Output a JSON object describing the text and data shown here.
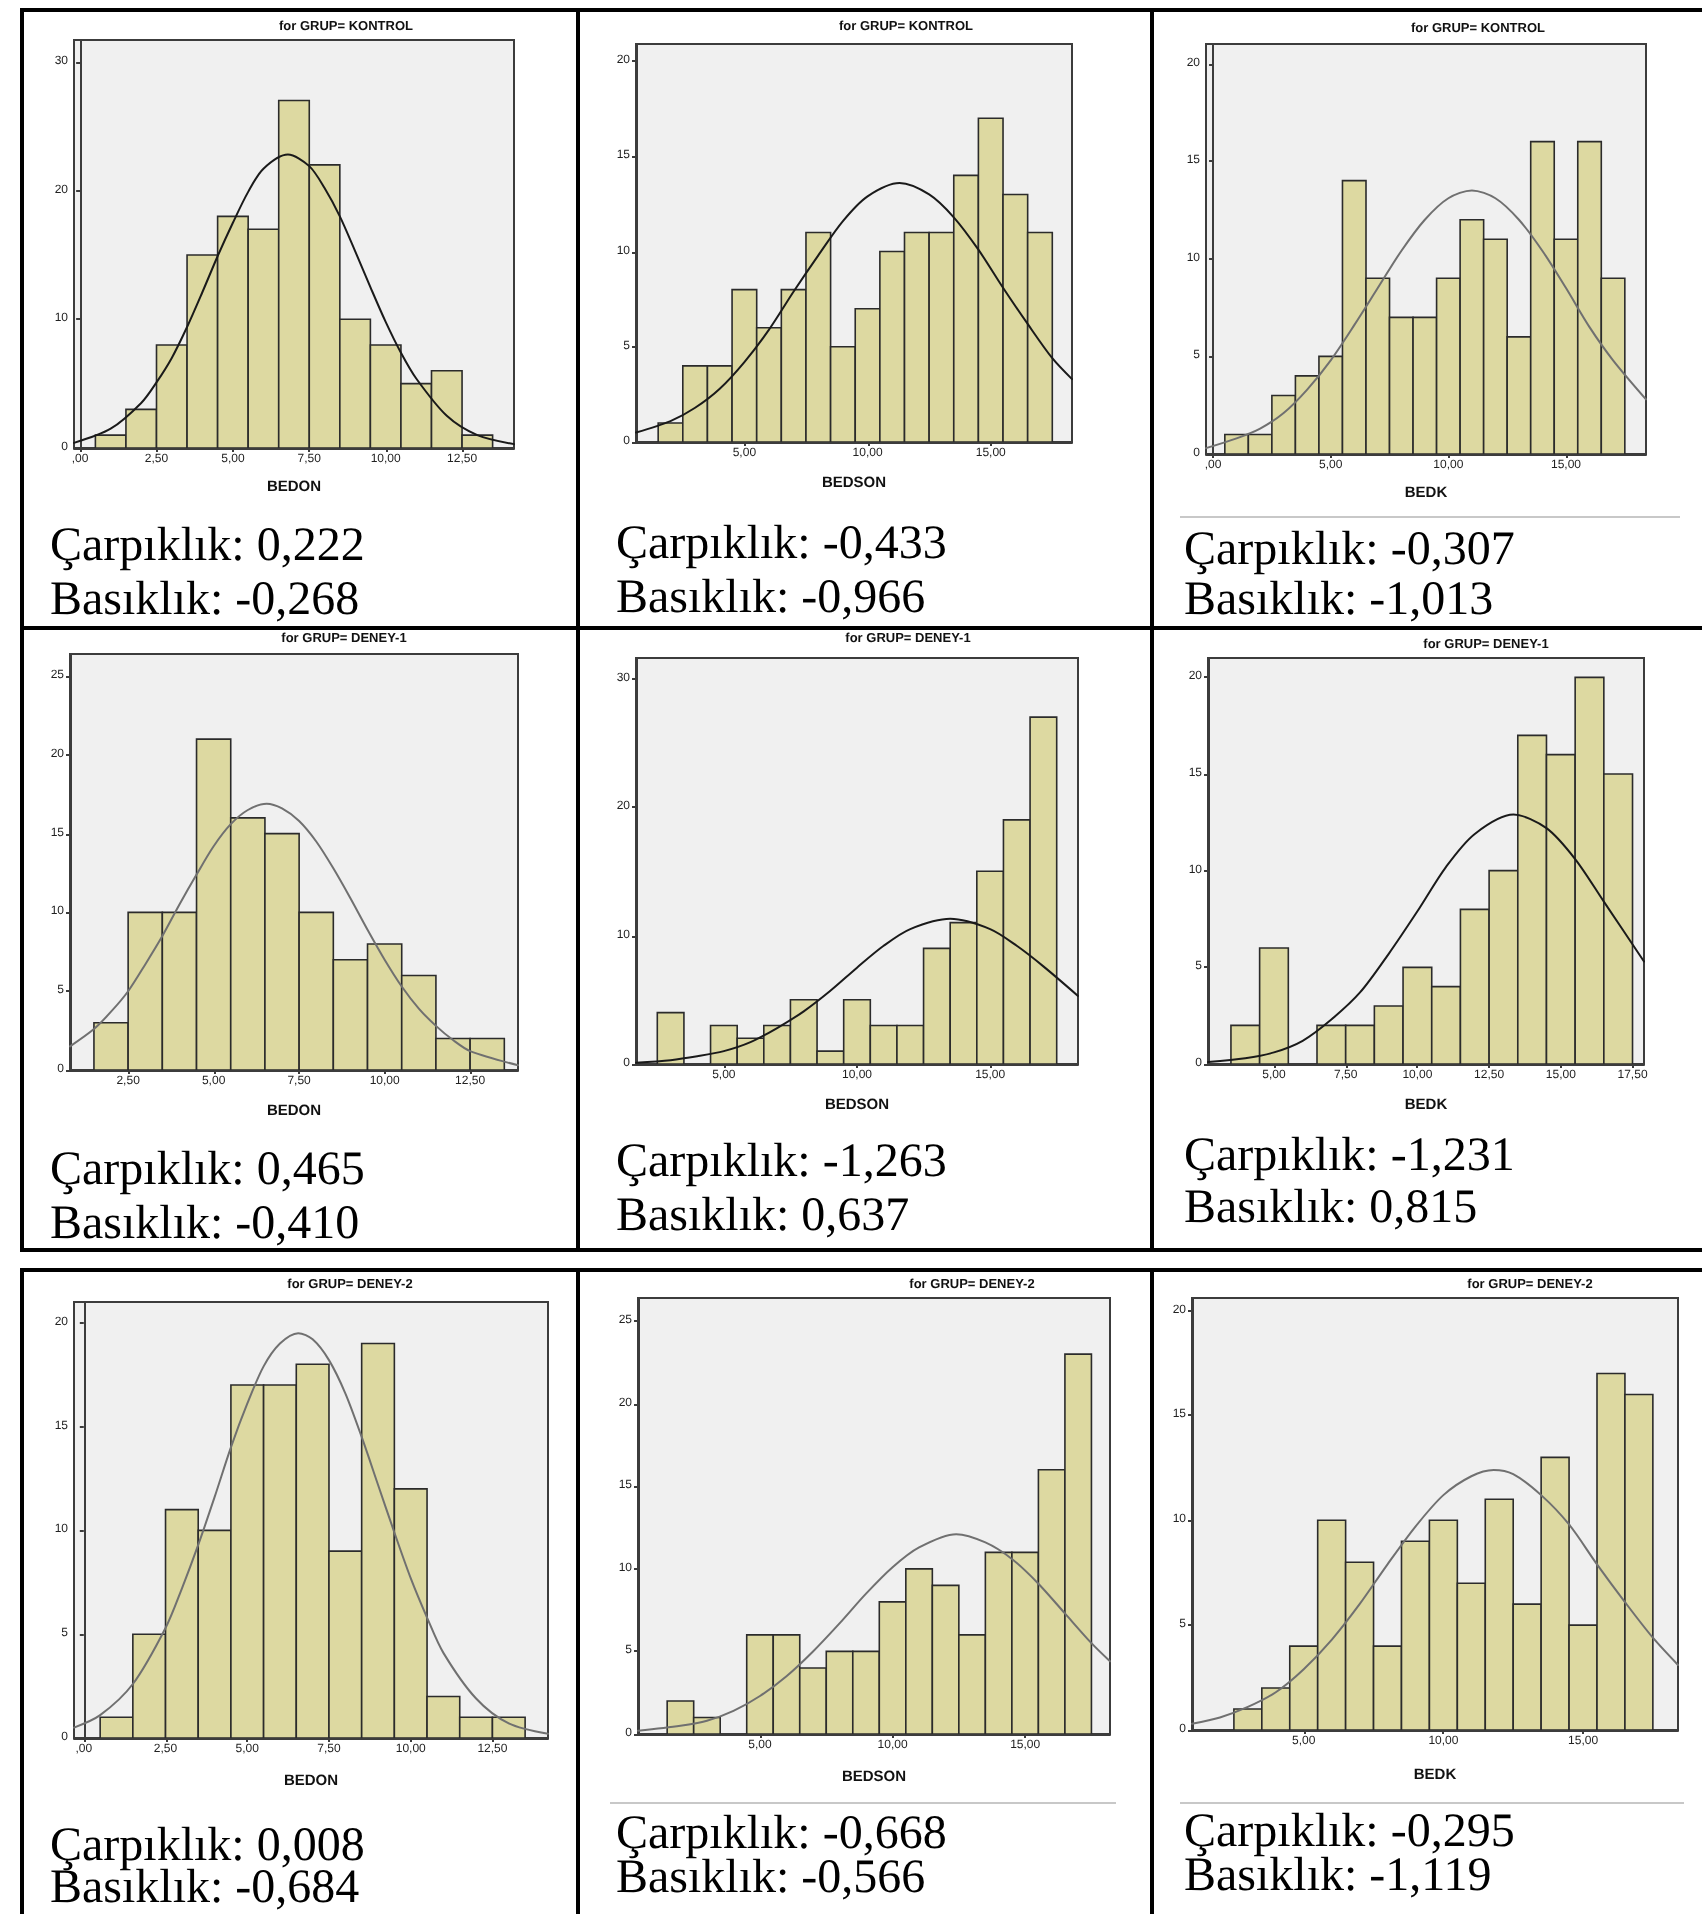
{
  "chart_data": [
    {
      "type": "histogram",
      "title": "for GRUP= KONTROL",
      "xlabel": "BEDON",
      "bins": [
        0.5,
        1.5,
        2.5,
        3.5,
        4.5,
        5.5,
        6.5,
        7.5,
        8.5,
        9.5,
        10.5,
        11.5,
        12.5,
        13.5
      ],
      "series": [
        {
          "values": [
            1,
            3,
            8,
            15,
            18,
            17,
            27,
            22,
            10,
            8,
            5,
            6,
            1
          ],
          "color": "#ddd9a1"
        },
        {
          "type": "line",
          "x": [
            -0.2,
            1,
            2,
            2.5,
            3,
            3.5,
            4,
            4.5,
            5,
            5.5,
            6,
            6.8,
            7.5,
            8,
            8.5,
            9,
            9.5,
            10,
            10.5,
            11,
            12,
            13,
            14.2
          ],
          "values": [
            0.4,
            1.5,
            3.5,
            5.1,
            7.0,
            9.4,
            12.1,
            14.9,
            17.5,
            19.9,
            21.7,
            22.8,
            21.9,
            20.2,
            18.0,
            15.3,
            12.5,
            9.8,
            7.4,
            5.4,
            2.5,
            1.0,
            0.3
          ],
          "color": "#1a1a1a"
        }
      ],
      "xlim": [
        -0.2,
        14.2
      ],
      "xticks": [
        {
          "value": 0,
          "label": ",00"
        },
        {
          "value": 2.5,
          "label": "2,50"
        },
        {
          "value": 5,
          "label": "5,00"
        },
        {
          "value": 7.5,
          "label": "7,50"
        },
        {
          "value": 10,
          "label": "10,00"
        },
        {
          "value": 12.5,
          "label": "12,50"
        }
      ],
      "ylim": [
        0,
        31.7
      ],
      "yticks": [
        0,
        10,
        20,
        30
      ],
      "annotations": [
        "Çarpıklık: 0,222",
        "Basıklık: -0,268"
      ]
    },
    {
      "type": "histogram",
      "title": "for GRUP= KONTROL",
      "xlabel": "BEDSON",
      "bins": [
        1.5,
        2.5,
        3.5,
        4.5,
        5.5,
        6.5,
        7.5,
        8.5,
        9.5,
        10.5,
        11.5,
        12.5,
        13.5,
        14.5,
        15.5,
        16.5,
        17.5
      ],
      "series": [
        {
          "values": [
            1,
            4,
            4,
            8,
            6,
            8,
            11,
            5,
            7,
            10,
            11,
            11,
            14,
            17,
            13,
            11
          ],
          "color": "#ddd9a1"
        },
        {
          "type": "line",
          "x": [
            0.6,
            2,
            3,
            4,
            5,
            6,
            7,
            8,
            9,
            10,
            11.3,
            12.5,
            13.5,
            14.5,
            15.5,
            16.5,
            17.5,
            18.3
          ],
          "values": [
            0.5,
            1.1,
            1.8,
            2.8,
            4.2,
            5.9,
            7.9,
            9.8,
            11.6,
            12.9,
            13.6,
            13.0,
            11.8,
            10.1,
            8.1,
            6.2,
            4.4,
            3.3
          ],
          "color": "#1a1a1a"
        }
      ],
      "xlim": [
        0.6,
        18.3
      ],
      "xticks": [
        {
          "value": 5,
          "label": "5,00"
        },
        {
          "value": 10,
          "label": "10,00"
        },
        {
          "value": 15,
          "label": "15,00"
        }
      ],
      "ylim": [
        0,
        20.9
      ],
      "yticks": [
        0,
        5,
        10,
        15,
        20
      ],
      "annotations": [
        "Çarpıklık: -0,433",
        "Basıklık: -0,966"
      ]
    },
    {
      "type": "histogram",
      "title": "for GRUP= KONTROL",
      "xlabel": "BEDK",
      "bins": [
        0.5,
        1.5,
        2.5,
        3.5,
        4.5,
        5.5,
        6.5,
        7.5,
        8.5,
        9.5,
        10.5,
        11.5,
        12.5,
        13.5,
        14.5,
        15.5,
        16.5,
        17.5
      ],
      "series": [
        {
          "values": [
            1,
            1,
            3,
            4,
            5,
            14,
            9,
            7,
            7,
            9,
            12,
            11,
            6,
            16,
            11,
            16,
            9
          ],
          "color": "#ddd9a1"
        },
        {
          "type": "line",
          "x": [
            -0.3,
            1,
            2,
            3,
            4,
            5,
            6,
            7,
            8,
            9,
            10,
            11,
            12,
            13,
            14,
            15,
            16,
            17,
            18.4
          ],
          "values": [
            0.3,
            0.8,
            1.3,
            2.1,
            3.3,
            4.8,
            6.6,
            8.5,
            10.4,
            12.0,
            13.1,
            13.5,
            13.1,
            12.0,
            10.4,
            8.5,
            6.5,
            4.8,
            2.8
          ],
          "color": "#707070"
        }
      ],
      "xlim": [
        -0.3,
        18.4
      ],
      "xticks": [
        {
          "value": 0,
          "label": ",00"
        },
        {
          "value": 5,
          "label": "5,00"
        },
        {
          "value": 10,
          "label": "10,00"
        },
        {
          "value": 15,
          "label": "15,00"
        }
      ],
      "ylim": [
        0,
        21
      ],
      "yticks": [
        0,
        5,
        10,
        15,
        20
      ],
      "annotations": [
        "Çarpıklık: -0,307",
        "Basıklık: -1,013"
      ]
    },
    {
      "type": "histogram",
      "title": "for GRUP= DENEY-1",
      "xlabel": "BEDON",
      "bins": [
        1.5,
        2.5,
        3.5,
        4.5,
        5.5,
        6.5,
        7.5,
        8.5,
        9.5,
        10.5,
        11.5,
        12.5,
        13.5
      ],
      "series": [
        {
          "values": [
            3,
            10,
            10,
            21,
            16,
            15,
            10,
            7,
            8,
            6,
            2,
            2
          ],
          "color": "#ddd9a1"
        },
        {
          "type": "line",
          "x": [
            0.8,
            1.5,
            2,
            2.5,
            3,
            3.5,
            4,
            4.5,
            5,
            5.5,
            6,
            6.55,
            7,
            7.5,
            8,
            8.5,
            9,
            9.5,
            10,
            10.5,
            11,
            11.5,
            12,
            12.5,
            13.9
          ],
          "values": [
            1.5,
            2.6,
            3.7,
            5.0,
            6.7,
            8.5,
            10.5,
            12.4,
            14.2,
            15.6,
            16.5,
            16.9,
            16.6,
            15.8,
            14.5,
            12.8,
            10.9,
            8.9,
            7.0,
            5.3,
            3.9,
            2.8,
            1.9,
            1.2,
            0.3
          ],
          "color": "#707070"
        }
      ],
      "xlim": [
        0.8,
        13.9
      ],
      "xticks": [
        {
          "value": 2.5,
          "label": "2,50"
        },
        {
          "value": 5,
          "label": "5,00"
        },
        {
          "value": 7.5,
          "label": "7,50"
        },
        {
          "value": 10,
          "label": "10,00"
        },
        {
          "value": 12.5,
          "label": "12,50"
        }
      ],
      "ylim": [
        0,
        26.4
      ],
      "yticks": [
        0,
        5,
        10,
        15,
        20,
        25
      ],
      "annotations": [
        "Çarpıklık: 0,465",
        "Basıklık: -0,410"
      ]
    },
    {
      "type": "histogram",
      "title": "for GRUP= DENEY-1",
      "xlabel": "BEDSON",
      "bins": [
        2.5,
        3.5,
        4.5,
        5.5,
        6.5,
        7.5,
        8.5,
        9.5,
        10.5,
        11.5,
        12.5,
        13.5,
        14.5,
        15.5,
        16.5,
        17.5
      ],
      "series": [
        {
          "values": [
            4,
            0,
            3,
            2,
            3,
            5,
            1,
            5,
            3,
            3,
            9,
            11,
            15,
            19,
            27
          ],
          "color": "#ddd9a1"
        },
        {
          "type": "line",
          "x": [
            1.7,
            3,
            4,
            5,
            6,
            7,
            8,
            9,
            10,
            11,
            12,
            13.5,
            15,
            16,
            17,
            18.3
          ],
          "values": [
            0.1,
            0.3,
            0.6,
            1.0,
            1.7,
            2.8,
            4.1,
            5.7,
            7.5,
            9.2,
            10.5,
            11.3,
            10.5,
            9.2,
            7.6,
            5.3
          ],
          "color": "#1a1a1a"
        }
      ],
      "xlim": [
        1.7,
        18.3
      ],
      "xticks": [
        {
          "value": 5,
          "label": "5,00"
        },
        {
          "value": 10,
          "label": "10,00"
        },
        {
          "value": 15,
          "label": "15,00"
        }
      ],
      "ylim": [
        0,
        31.6
      ],
      "yticks": [
        0,
        10,
        20,
        30
      ],
      "annotations": [
        "Çarpıklık: -1,263",
        "Basıklık: 0,637"
      ]
    },
    {
      "type": "histogram",
      "title": "for GRUP= DENEY-1",
      "xlabel": "BEDK",
      "bins": [
        3.5,
        4.5,
        5.5,
        6.5,
        7.5,
        8.5,
        9.5,
        10.5,
        11.5,
        12.5,
        13.5,
        14.5,
        15.5,
        16.5,
        17.5
      ],
      "series": [
        {
          "values": [
            2,
            6,
            0,
            2,
            2,
            3,
            5,
            4,
            8,
            10,
            17,
            16,
            20,
            15
          ],
          "color": "#ddd9a1"
        },
        {
          "type": "line",
          "x": [
            2.7,
            4,
            5,
            6,
            7,
            8,
            9,
            10,
            11,
            12,
            13.35,
            14.5,
            15.5,
            16.5,
            17.9
          ],
          "values": [
            0.1,
            0.3,
            0.6,
            1.2,
            2.3,
            3.7,
            5.7,
            7.9,
            10.2,
            11.9,
            12.9,
            12.2,
            10.6,
            8.4,
            5.3
          ],
          "color": "#1a1a1a"
        }
      ],
      "xlim": [
        2.7,
        17.9
      ],
      "xticks": [
        {
          "value": 5,
          "label": "5,00"
        },
        {
          "value": 7.5,
          "label": "7,50"
        },
        {
          "value": 10,
          "label": "10,00"
        },
        {
          "value": 12.5,
          "label": "12,50"
        },
        {
          "value": 15,
          "label": "15,00"
        },
        {
          "value": 17.5,
          "label": "17,50"
        }
      ],
      "ylim": [
        0,
        21
      ],
      "yticks": [
        0,
        5,
        10,
        15,
        20
      ],
      "annotations": [
        "Çarpıklık: -1,231",
        "Basıklık: 0,815"
      ]
    },
    {
      "type": "histogram",
      "title": "for GRUP= DENEY-2",
      "xlabel": "BEDON",
      "bins": [
        0.5,
        1.5,
        2.5,
        3.5,
        4.5,
        5.5,
        6.5,
        7.5,
        8.5,
        9.5,
        10.5,
        11.5,
        12.5,
        13.5
      ],
      "series": [
        {
          "values": [
            1,
            5,
            11,
            10,
            17,
            17,
            18,
            9,
            19,
            12,
            2,
            1,
            1
          ],
          "color": "#ddd9a1"
        },
        {
          "type": "line",
          "x": [
            -0.3,
            0.5,
            1.5,
            2.5,
            3,
            3.5,
            4,
            4.5,
            5,
            5.5,
            6,
            6.56,
            7,
            7.5,
            8,
            8.5,
            9,
            9.5,
            10,
            10.5,
            11,
            12,
            13,
            14.2
          ],
          "values": [
            0.5,
            1.1,
            2.6,
            5.3,
            7.2,
            9.3,
            11.6,
            14.0,
            16.1,
            17.9,
            19.0,
            19.5,
            19.2,
            18.2,
            16.6,
            14.5,
            12.2,
            9.9,
            7.7,
            5.8,
            4.1,
            1.9,
            0.7,
            0.2
          ],
          "color": "#707070"
        }
      ],
      "xlim": [
        -0.3,
        14.2
      ],
      "xticks": [
        {
          "value": 0,
          "label": ",00"
        },
        {
          "value": 2.5,
          "label": "2,50"
        },
        {
          "value": 5,
          "label": "5,00"
        },
        {
          "value": 7.5,
          "label": "7,50"
        },
        {
          "value": 10,
          "label": "10,00"
        },
        {
          "value": 12.5,
          "label": "12,50"
        }
      ],
      "ylim": [
        0,
        21
      ],
      "yticks": [
        0,
        5,
        10,
        15,
        20
      ],
      "annotations": [
        "Çarpıklık: 0,008",
        "Basıklık: -0,684"
      ]
    },
    {
      "type": "histogram",
      "title": "for GRUP= DENEY-2",
      "xlabel": "BEDSON",
      "bins": [
        1.5,
        2.5,
        3.5,
        4.5,
        5.5,
        6.5,
        7.5,
        8.5,
        9.5,
        10.5,
        11.5,
        12.5,
        13.5,
        14.5,
        15.5,
        16.5,
        17.5
      ],
      "series": [
        {
          "values": [
            2,
            1,
            0,
            6,
            6,
            4,
            5,
            5,
            8,
            10,
            9,
            6,
            11,
            11,
            16,
            23
          ],
          "color": "#ddd9a1"
        },
        {
          "type": "line",
          "x": [
            0.4,
            2,
            3,
            4,
            5,
            6,
            7,
            8,
            9,
            10,
            11,
            12.4,
            13.5,
            14.5,
            15.5,
            16.5,
            17.5,
            18.2
          ],
          "values": [
            0.2,
            0.5,
            0.8,
            1.4,
            2.3,
            3.5,
            5.0,
            6.7,
            8.5,
            10.1,
            11.3,
            12.1,
            11.6,
            10.6,
            9.1,
            7.3,
            5.5,
            4.4
          ],
          "color": "#707070"
        }
      ],
      "xlim": [
        0.4,
        18.2
      ],
      "xticks": [
        {
          "value": 5,
          "label": "5,00"
        },
        {
          "value": 10,
          "label": "10,00"
        },
        {
          "value": 15,
          "label": "15,00"
        }
      ],
      "ylim": [
        0,
        26.4
      ],
      "yticks": [
        0,
        5,
        10,
        15,
        20,
        25
      ],
      "annotations": [
        "Çarpıklık: -0,668",
        "Basıklık: -0,566"
      ]
    },
    {
      "type": "histogram",
      "title": "for GRUP= DENEY-2",
      "xlabel": "BEDK",
      "bins": [
        2.5,
        3.5,
        4.5,
        5.5,
        6.5,
        7.5,
        8.5,
        9.5,
        10.5,
        11.5,
        12.5,
        13.5,
        14.5,
        15.5,
        16.5,
        17.5
      ],
      "series": [
        {
          "values": [
            1,
            2,
            4,
            10,
            8,
            4,
            9,
            10,
            7,
            11,
            6,
            13,
            5,
            17,
            16
          ],
          "color": "#ddd9a1"
        },
        {
          "type": "line",
          "x": [
            1,
            2,
            3,
            4,
            5,
            6,
            7,
            8,
            9,
            10,
            11,
            11.8,
            12.5,
            13.5,
            14.5,
            15.5,
            16.5,
            17.5,
            18.4
          ],
          "values": [
            0.3,
            0.6,
            1.1,
            1.8,
            2.9,
            4.3,
            6.0,
            7.9,
            9.7,
            11.2,
            12.1,
            12.4,
            12.2,
            11.2,
            9.8,
            7.9,
            6.1,
            4.4,
            3.1
          ],
          "color": "#707070"
        }
      ],
      "xlim": [
        1,
        18.4
      ],
      "xticks": [
        {
          "value": 5,
          "label": "5,00"
        },
        {
          "value": 10,
          "label": "10,00"
        },
        {
          "value": 15,
          "label": "15,00"
        }
      ],
      "ylim": [
        0,
        20.6
      ],
      "yticks": [
        0,
        5,
        10,
        15,
        20
      ],
      "annotations": [
        "Çarpıklık: -0,295",
        "Basıklık: -1,119"
      ]
    }
  ]
}
